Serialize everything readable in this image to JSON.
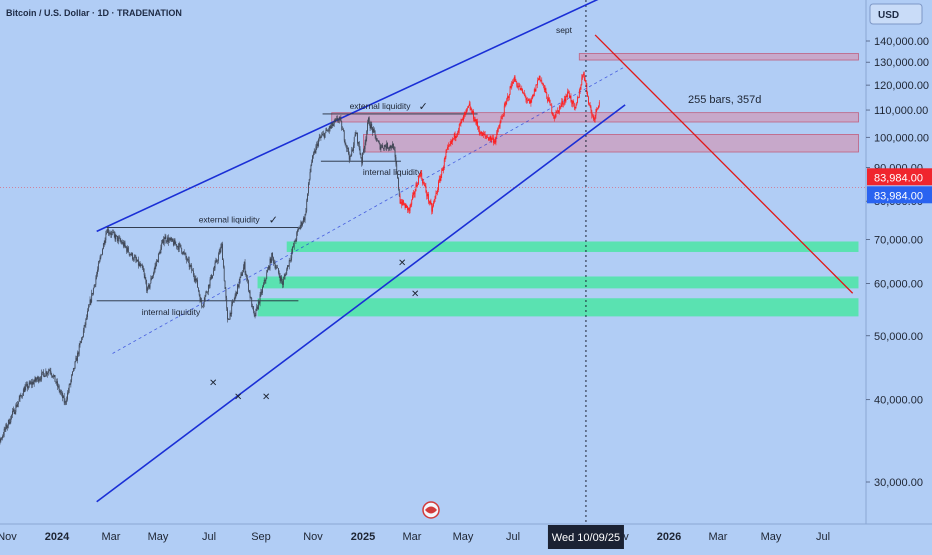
{
  "header": {
    "title": "Bitcoin / U.S. Dollar · 1D · TRADENATION"
  },
  "currency_button": {
    "label": "USD"
  },
  "colors": {
    "background": "#b1cdf5",
    "candles_hist": "#3b4250",
    "candles_recent": "#ff1a1a",
    "channel": "#1a2fd6",
    "projection": "#e01818",
    "supply_zone": "#d98aa6",
    "demand_zone": "#3ee89a",
    "price_badge_red": "#f0252d",
    "price_badge_blue": "#2a63f0"
  },
  "chart_data": {
    "type": "candlestick",
    "y_axis": {
      "scale": "log",
      "ticks": [
        "140,000.00",
        "130,000.00",
        "120,000.00",
        "110,000.00",
        "100,000.00",
        "90,000.00",
        "80,000.00",
        "70,000.00",
        "60,000.00",
        "50,000.00",
        "40,000.00",
        "30,000.00"
      ],
      "tick_values": [
        140000,
        130000,
        120000,
        110000,
        100000,
        90000,
        80000,
        70000,
        60000,
        50000,
        40000,
        30000
      ]
    },
    "x_axis": {
      "ticks": [
        "Nov",
        "2024",
        "Mar",
        "May",
        "Jul",
        "Sep",
        "Nov",
        "2025",
        "Mar",
        "May",
        "Jul",
        "Nov",
        "2026",
        "Mar",
        "May",
        "Jul"
      ],
      "bold_ticks": [
        "2024",
        "2025",
        "2026"
      ],
      "crosshair_label": "Wed 10/09/25"
    },
    "price_labels": [
      {
        "value": "83,984.00",
        "style": "red"
      },
      {
        "value": "83,984.00",
        "style": "blue"
      }
    ],
    "price_path": [
      [
        "2023-10-20",
        29000
      ],
      [
        "2023-11-05",
        34500
      ],
      [
        "2023-12-05",
        41500
      ],
      [
        "2024-01-05",
        44500
      ],
      [
        "2024-01-23",
        39500
      ],
      [
        "2024-02-12",
        49500
      ],
      [
        "2024-03-01",
        62000
      ],
      [
        "2024-03-13",
        72500
      ],
      [
        "2024-04-01",
        69000
      ],
      [
        "2024-04-25",
        63000
      ],
      [
        "2024-05-01",
        58500
      ],
      [
        "2024-05-21",
        70500
      ],
      [
        "2024-06-10",
        68000
      ],
      [
        "2024-06-28",
        61000
      ],
      [
        "2024-07-05",
        55500
      ],
      [
        "2024-07-29",
        68500
      ],
      [
        "2024-08-05",
        52500
      ],
      [
        "2024-08-25",
        64000
      ],
      [
        "2024-09-06",
        53200
      ],
      [
        "2024-09-27",
        66000
      ],
      [
        "2024-10-10",
        60000
      ],
      [
        "2024-10-29",
        72500
      ],
      [
        "2024-11-06",
        76000
      ],
      [
        "2024-11-13",
        91000
      ],
      [
        "2024-11-22",
        99000
      ],
      [
        "2024-12-05",
        103000
      ],
      [
        "2024-12-17",
        107000
      ],
      [
        "2024-12-30",
        92500
      ],
      [
        "2025-01-06",
        102000
      ],
      [
        "2025-01-13",
        92000
      ],
      [
        "2025-01-21",
        106000
      ],
      [
        "2025-02-03",
        97000
      ],
      [
        "2025-02-20",
        97000
      ],
      [
        "2025-02-28",
        80000
      ],
      [
        "2025-03-11",
        77500
      ],
      [
        "2025-03-24",
        88500
      ],
      [
        "2025-04-07",
        77500
      ],
      [
        "2025-04-25",
        95000
      ],
      [
        "2025-05-22",
        111500
      ],
      [
        "2025-06-05",
        101000
      ],
      [
        "2025-06-22",
        99000
      ],
      [
        "2025-07-14",
        123000
      ],
      [
        "2025-08-03",
        112000
      ],
      [
        "2025-08-14",
        124000
      ],
      [
        "2025-09-01",
        107500
      ],
      [
        "2025-09-18",
        117000
      ],
      [
        "2025-09-26",
        109500
      ],
      [
        "2025-10-06",
        126000
      ],
      [
        "2025-10-13",
        112000
      ],
      [
        "2025-10-18",
        106500
      ],
      [
        "2025-10-25",
        114000
      ]
    ],
    "recent_from": "2025-02-28",
    "zones": [
      {
        "kind": "supply",
        "from": "2025-10-01",
        "to": "2026-09-01",
        "low": 131000,
        "high": 134000
      },
      {
        "kind": "supply",
        "from": "2024-12-08",
        "to": "2026-09-01",
        "low": 105500,
        "high": 109000
      },
      {
        "kind": "supply",
        "from": "2025-01-15",
        "to": "2026-09-01",
        "low": 95000,
        "high": 101000
      },
      {
        "kind": "demand",
        "from": "2024-10-15",
        "to": "2026-09-01",
        "low": 67000,
        "high": 69500
      },
      {
        "kind": "demand",
        "from": "2024-09-10",
        "to": "2026-09-01",
        "low": 59000,
        "high": 61500
      },
      {
        "kind": "demand",
        "from": "2024-09-10",
        "to": "2026-09-01",
        "low": 53500,
        "high": 57000
      }
    ],
    "channel": {
      "upper": [
        [
          "2024-03-01",
          72000
        ],
        [
          "2025-12-20",
          175000
        ]
      ],
      "lower": [
        [
          "2024-03-01",
          28000
        ],
        [
          "2025-11-25",
          112000
        ]
      ],
      "mid": [
        [
          "2024-03-20",
          47000
        ],
        [
          "2025-11-25",
          128000
        ]
      ]
    },
    "projection": [
      [
        "2025-10-20",
        143000
      ],
      [
        "2026-08-25",
        58000
      ]
    ],
    "levels": [
      {
        "label": "external liquidity",
        "from": "2024-03-13",
        "to": "2024-10-29",
        "value": 73000
      },
      {
        "label": "internal liquidity",
        "from": "2024-03-01",
        "to": "2024-10-29",
        "value": 56500
      },
      {
        "label": "external liquidity",
        "from": "2024-11-27",
        "to": "2025-06-01",
        "value": 108500
      },
      {
        "label": "internal liquidity",
        "from": "2024-11-25",
        "to": "2025-03-01",
        "value": 92000
      }
    ],
    "annotations": {
      "sept": "sept",
      "bars_range": "255 bars, 357d",
      "check_mark": "✓",
      "cross_mark": "✕"
    },
    "current_price_value": 83984,
    "crosshair_date": "2025-10-09"
  }
}
